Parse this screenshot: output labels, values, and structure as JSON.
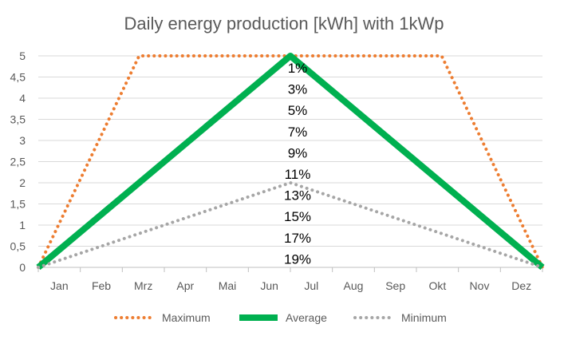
{
  "chart_data": {
    "type": "line",
    "title": "Daily energy production [kWh] with 1kWp",
    "xlabel": "",
    "ylabel": "",
    "categories": [
      "Jan",
      "Feb",
      "Mrz",
      "Apr",
      "Mai",
      "Jun",
      "Jul",
      "Aug",
      "Sep",
      "Okt",
      "Nov",
      "Dez"
    ],
    "y_ticks": [
      "0",
      "0,5",
      "1",
      "1,5",
      "2",
      "2,5",
      "3",
      "3,5",
      "4",
      "4,5",
      "5"
    ],
    "ylim": [
      0,
      5
    ],
    "x_range": [
      0,
      12
    ],
    "grid": "horizontal",
    "legend_position": "bottom",
    "series": [
      {
        "name": "Maximum",
        "color": "#ED7D31",
        "style": "dotted",
        "points": [
          [
            0,
            0
          ],
          [
            2.4,
            5
          ],
          [
            9.6,
            5
          ],
          [
            12,
            0
          ]
        ]
      },
      {
        "name": "Average",
        "color": "#00B050",
        "style": "solid",
        "points": [
          [
            0,
            0
          ],
          [
            6,
            5
          ],
          [
            12,
            0
          ]
        ]
      },
      {
        "name": "Minimum",
        "color": "#A6A6A6",
        "style": "dotted",
        "points": [
          [
            0,
            0
          ],
          [
            6,
            2
          ],
          [
            12,
            0
          ]
        ]
      }
    ],
    "annotations": [
      "1%",
      "3%",
      "5%",
      "7%",
      "9%",
      "11%",
      "13%",
      "15%",
      "17%",
      "19%"
    ]
  }
}
